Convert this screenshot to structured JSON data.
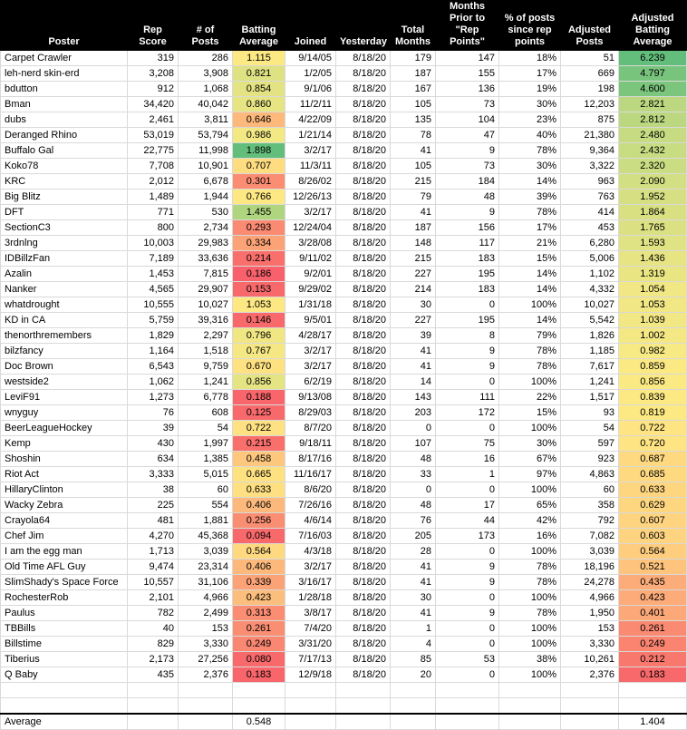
{
  "columns": [
    "Poster",
    "Rep Score",
    "# of Posts",
    "Batting Average",
    "Joined",
    "Yesterday",
    "Total Months",
    "Months Prior to \"Rep Points\"",
    "% of posts since rep points",
    "Adjusted Posts",
    "Adjusted Batting Average"
  ],
  "rows": [
    [
      "Carpet Crawler",
      "319",
      "286",
      "1.115",
      "9/14/05",
      "8/18/20",
      "179",
      "147",
      "18%",
      "51",
      "6.239"
    ],
    [
      "leh-nerd skin-erd",
      "3,208",
      "3,908",
      "0.821",
      "1/2/05",
      "8/18/20",
      "187",
      "155",
      "17%",
      "669",
      "4.797"
    ],
    [
      "bdutton",
      "912",
      "1,068",
      "0.854",
      "9/1/06",
      "8/18/20",
      "167",
      "136",
      "19%",
      "198",
      "4.600"
    ],
    [
      "Bman",
      "34,420",
      "40,042",
      "0.860",
      "11/2/11",
      "8/18/20",
      "105",
      "73",
      "30%",
      "12,203",
      "2.821"
    ],
    [
      "dubs",
      "2,461",
      "3,811",
      "0.646",
      "4/22/09",
      "8/18/20",
      "135",
      "104",
      "23%",
      "875",
      "2.812"
    ],
    [
      "Deranged Rhino",
      "53,019",
      "53,794",
      "0.986",
      "1/21/14",
      "8/18/20",
      "78",
      "47",
      "40%",
      "21,380",
      "2.480"
    ],
    [
      "Buffalo Gal",
      "22,775",
      "11,998",
      "1.898",
      "3/2/17",
      "8/18/20",
      "41",
      "9",
      "78%",
      "9,364",
      "2.432"
    ],
    [
      "Koko78",
      "7,708",
      "10,901",
      "0.707",
      "11/3/11",
      "8/18/20",
      "105",
      "73",
      "30%",
      "3,322",
      "2.320"
    ],
    [
      "KRC",
      "2,012",
      "6,678",
      "0.301",
      "8/26/02",
      "8/18/20",
      "215",
      "184",
      "14%",
      "963",
      "2.090"
    ],
    [
      "Big Blitz",
      "1,489",
      "1,944",
      "0.766",
      "12/26/13",
      "8/18/20",
      "79",
      "48",
      "39%",
      "763",
      "1.952"
    ],
    [
      "DFT",
      "771",
      "530",
      "1.455",
      "3/2/17",
      "8/18/20",
      "41",
      "9",
      "78%",
      "414",
      "1.864"
    ],
    [
      "SectionC3",
      "800",
      "2,734",
      "0.293",
      "12/24/04",
      "8/18/20",
      "187",
      "156",
      "17%",
      "453",
      "1.765"
    ],
    [
      "3rdnlng",
      "10,003",
      "29,983",
      "0.334",
      "3/28/08",
      "8/18/20",
      "148",
      "117",
      "21%",
      "6,280",
      "1.593"
    ],
    [
      "IDBillzFan",
      "7,189",
      "33,636",
      "0.214",
      "9/11/02",
      "8/18/20",
      "215",
      "183",
      "15%",
      "5,006",
      "1.436"
    ],
    [
      "Azalin",
      "1,453",
      "7,815",
      "0.186",
      "9/2/01",
      "8/18/20",
      "227",
      "195",
      "14%",
      "1,102",
      "1.319"
    ],
    [
      "Nanker",
      "4,565",
      "29,907",
      "0.153",
      "9/29/02",
      "8/18/20",
      "214",
      "183",
      "14%",
      "4,332",
      "1.054"
    ],
    [
      "whatdrought",
      "10,555",
      "10,027",
      "1.053",
      "1/31/18",
      "8/18/20",
      "30",
      "0",
      "100%",
      "10,027",
      "1.053"
    ],
    [
      "KD in CA",
      "5,759",
      "39,316",
      "0.146",
      "9/5/01",
      "8/18/20",
      "227",
      "195",
      "14%",
      "5,542",
      "1.039"
    ],
    [
      "thenorthremembers",
      "1,829",
      "2,297",
      "0.796",
      "4/28/17",
      "8/18/20",
      "39",
      "8",
      "79%",
      "1,826",
      "1.002"
    ],
    [
      "bilzfancy",
      "1,164",
      "1,518",
      "0.767",
      "3/2/17",
      "8/18/20",
      "41",
      "9",
      "78%",
      "1,185",
      "0.982"
    ],
    [
      "Doc Brown",
      "6,543",
      "9,759",
      "0.670",
      "3/2/17",
      "8/18/20",
      "41",
      "9",
      "78%",
      "7,617",
      "0.859"
    ],
    [
      "westside2",
      "1,062",
      "1,241",
      "0.856",
      "6/2/19",
      "8/18/20",
      "14",
      "0",
      "100%",
      "1,241",
      "0.856"
    ],
    [
      "LeviF91",
      "1,273",
      "6,778",
      "0.188",
      "9/13/08",
      "8/18/20",
      "143",
      "111",
      "22%",
      "1,517",
      "0.839"
    ],
    [
      "wnyguy",
      "76",
      "608",
      "0.125",
      "8/29/03",
      "8/18/20",
      "203",
      "172",
      "15%",
      "93",
      "0.819"
    ],
    [
      "BeerLeagueHockey",
      "39",
      "54",
      "0.722",
      "8/7/20",
      "8/18/20",
      "0",
      "0",
      "100%",
      "54",
      "0.722"
    ],
    [
      "Kemp",
      "430",
      "1,997",
      "0.215",
      "9/18/11",
      "8/18/20",
      "107",
      "75",
      "30%",
      "597",
      "0.720"
    ],
    [
      "Shoshin",
      "634",
      "1,385",
      "0.458",
      "8/17/16",
      "8/18/20",
      "48",
      "16",
      "67%",
      "923",
      "0.687"
    ],
    [
      "Riot Act",
      "3,333",
      "5,015",
      "0.665",
      "11/16/17",
      "8/18/20",
      "33",
      "1",
      "97%",
      "4,863",
      "0.685"
    ],
    [
      "HillaryClinton",
      "38",
      "60",
      "0.633",
      "8/6/20",
      "8/18/20",
      "0",
      "0",
      "100%",
      "60",
      "0.633"
    ],
    [
      "Wacky Zebra",
      "225",
      "554",
      "0.406",
      "7/26/16",
      "8/18/20",
      "48",
      "17",
      "65%",
      "358",
      "0.629"
    ],
    [
      "Crayola64",
      "481",
      "1,881",
      "0.256",
      "4/6/14",
      "8/18/20",
      "76",
      "44",
      "42%",
      "792",
      "0.607"
    ],
    [
      "Chef Jim",
      "4,270",
      "45,368",
      "0.094",
      "7/16/03",
      "8/18/20",
      "205",
      "173",
      "16%",
      "7,082",
      "0.603"
    ],
    [
      "I am the egg man",
      "1,713",
      "3,039",
      "0.564",
      "4/3/18",
      "8/18/20",
      "28",
      "0",
      "100%",
      "3,039",
      "0.564"
    ],
    [
      "Old Time AFL Guy",
      "9,474",
      "23,314",
      "0.406",
      "3/2/17",
      "8/18/20",
      "41",
      "9",
      "78%",
      "18,196",
      "0.521"
    ],
    [
      "SlimShady's Space Force",
      "10,557",
      "31,106",
      "0.339",
      "3/16/17",
      "8/18/20",
      "41",
      "9",
      "78%",
      "24,278",
      "0.435"
    ],
    [
      "RochesterRob",
      "2,101",
      "4,966",
      "0.423",
      "1/28/18",
      "8/18/20",
      "30",
      "0",
      "100%",
      "4,966",
      "0.423"
    ],
    [
      "Paulus",
      "782",
      "2,499",
      "0.313",
      "3/8/17",
      "8/18/20",
      "41",
      "9",
      "78%",
      "1,950",
      "0.401"
    ],
    [
      "TBBills",
      "40",
      "153",
      "0.261",
      "7/4/20",
      "8/18/20",
      "1",
      "0",
      "100%",
      "153",
      "0.261"
    ],
    [
      "Billstime",
      "829",
      "3,330",
      "0.249",
      "3/31/20",
      "8/18/20",
      "4",
      "0",
      "100%",
      "3,330",
      "0.249"
    ],
    [
      "Tiberius",
      "2,173",
      "27,256",
      "0.080",
      "7/17/13",
      "8/18/20",
      "85",
      "53",
      "38%",
      "10,261",
      "0.212"
    ],
    [
      "Q Baby",
      "435",
      "2,376",
      "0.183",
      "12/9/18",
      "8/18/20",
      "20",
      "0",
      "100%",
      "2,376",
      "0.183"
    ]
  ],
  "ba_colors": [
    "#fde983",
    "#dfe283",
    "#e4e383",
    "#e6e483",
    "#fcb97b",
    "#f2e884",
    "#63be7b",
    "#fedd81",
    "#fa8d72",
    "#fee883",
    "#b0d57f",
    "#fa8a72",
    "#fba276",
    "#f96f6c",
    "#f8616b",
    "#f8696b",
    "#fee883",
    "#f8696b",
    "#f0e784",
    "#f5e884",
    "#fee282",
    "#e5e483",
    "#f8656b",
    "#f8696b",
    "#fee182",
    "#f96f6c",
    "#fdc77d",
    "#fee282",
    "#fedf81",
    "#fcb97b",
    "#f98e72",
    "#f8696b",
    "#fed980",
    "#fcb97b",
    "#fba276",
    "#fcbe7c",
    "#fa8d72",
    "#f98e72",
    "#f98771",
    "#f8696b",
    "#f8656b"
  ],
  "aba_colors": [
    "#63be7b",
    "#79c47c",
    "#7bc57c",
    "#bbd881",
    "#bbd881",
    "#c7dc82",
    "#c8dc82",
    "#cbdd82",
    "#d2df82",
    "#d6e082",
    "#d8e082",
    "#dbe182",
    "#e0e383",
    "#e6e483",
    "#e9e583",
    "#f1e784",
    "#f1e784",
    "#f1e784",
    "#f4e884",
    "#f7e984",
    "#fbe983",
    "#fbe983",
    "#fce983",
    "#fce983",
    "#fee482",
    "#fee482",
    "#fed980",
    "#fed980",
    "#fed680",
    "#fed680",
    "#fed480",
    "#fed480",
    "#fecd7e",
    "#fec47d",
    "#fcac79",
    "#fcab79",
    "#fca878",
    "#fa8a72",
    "#fa8470",
    "#f9786e",
    "#f8696b"
  ],
  "average": {
    "label": "Average",
    "batting_average": "0.548",
    "adjusted_batting_average": "1.404"
  }
}
